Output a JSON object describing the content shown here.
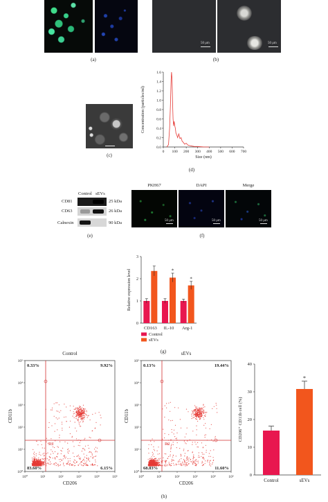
{
  "panels": {
    "a": {
      "label": "(a)"
    },
    "b": {
      "label": "(b)",
      "scale_left": "50 μm",
      "scale_right": "50 μm"
    },
    "c": {
      "label": "(c)"
    },
    "d": {
      "label": "(d)"
    },
    "e": {
      "label": "(e)",
      "col_control": "Control",
      "col_sevs": "sEVs",
      "rows": [
        {
          "name": "CD81",
          "size": "25 kDa"
        },
        {
          "name": "CD63",
          "size": "26 kDa"
        },
        {
          "name": "Calnexin",
          "size": "90 kDa"
        }
      ]
    },
    "f": {
      "label": "(f)",
      "headers": [
        "PKH67",
        "DAPI",
        "Merge"
      ],
      "scale": "50 μm"
    },
    "g": {
      "label": "(g)"
    },
    "h": {
      "label": "(h)",
      "plot_left_title": "Control",
      "plot_right_title": "sEVs",
      "quad_left": [
        "0.33%",
        "9.92%",
        "83.60%",
        "6.15%"
      ],
      "quad_right": [
        "0.13%",
        "19.44%",
        "68.83%",
        "11.60%"
      ],
      "gate": "R2",
      "xlabel": "CD206",
      "ylabel": "CD11b",
      "axis_ticks": [
        "10⁰",
        "10¹",
        "10²",
        "10³",
        "10⁴",
        "10⁵"
      ]
    }
  },
  "chart_data": [
    {
      "type": "line",
      "id": "d",
      "xlabel": "Size (nm)",
      "ylabel": "Concentration (particles/ml)",
      "xlim": [
        0,
        700
      ],
      "ylim": [
        0,
        1.6
      ],
      "xticks": [
        0,
        100,
        200,
        300,
        400,
        500,
        600,
        700
      ],
      "yticks": [
        0,
        0.2,
        0.4,
        0.6,
        0.8,
        1.0,
        1.2,
        1.4,
        1.6
      ],
      "x": [
        30,
        45,
        55,
        62,
        68,
        72,
        76,
        80,
        85,
        90,
        95,
        100,
        105,
        110,
        118,
        125,
        135,
        145,
        155,
        165,
        175,
        185,
        200,
        215,
        230,
        250,
        270,
        300,
        330,
        360,
        400
      ],
      "y": [
        0,
        0.05,
        0.4,
        0.9,
        1.45,
        1.6,
        1.45,
        1.0,
        0.6,
        0.45,
        0.55,
        0.45,
        0.4,
        0.3,
        0.25,
        0.2,
        0.28,
        0.18,
        0.2,
        0.12,
        0.1,
        0.06,
        0.08,
        0.04,
        0.03,
        0.02,
        0.01,
        0.01,
        0.005,
        0,
        0
      ],
      "color": "#e53935"
    },
    {
      "type": "bar",
      "id": "g",
      "categories": [
        "CD163",
        "IL-10",
        "Arg-1"
      ],
      "ylabel": "Relative expression level",
      "ylim": [
        0,
        3
      ],
      "yticks": [
        0,
        1,
        2,
        3
      ],
      "series": [
        {
          "name": "Control",
          "values": [
            1.0,
            1.0,
            1.0
          ],
          "errors": [
            0.1,
            0.1,
            0.08
          ],
          "color": "#e8174f"
        },
        {
          "name": "sEVs",
          "values": [
            2.35,
            2.05,
            1.7
          ],
          "errors": [
            0.22,
            0.2,
            0.18
          ],
          "color": "#f2561d"
        }
      ],
      "significance": [
        "",
        "*",
        "*"
      ]
    },
    {
      "type": "bar",
      "id": "h-bar",
      "categories": [
        "Control",
        "sEVs"
      ],
      "values": [
        16,
        31
      ],
      "errors": [
        1.6,
        2.8
      ],
      "colors": [
        "#e8174f",
        "#f2561d"
      ],
      "ylabel": "CD206⁺ CD11b cell (%)",
      "ylim": [
        0,
        40
      ],
      "yticks": [
        0,
        10,
        20,
        30,
        40
      ],
      "significance": [
        "",
        "*"
      ]
    }
  ]
}
